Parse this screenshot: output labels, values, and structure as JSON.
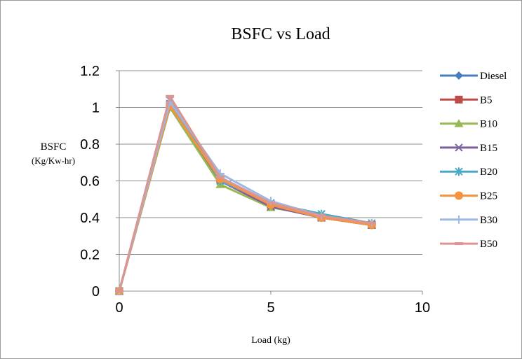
{
  "chart_data": {
    "type": "scatter",
    "title": "BSFC vs Load",
    "xlabel": "Load (kg)",
    "ylabel": [
      "BSFC",
      "(Kg/Kw-hr)"
    ],
    "xlim": [
      0,
      10
    ],
    "ylim": [
      0,
      1.2
    ],
    "xticks": [
      "0",
      "5",
      "10"
    ],
    "yticks": [
      "0",
      "0.2",
      "0.4",
      "0.6",
      "0.8",
      "1",
      "1.2"
    ],
    "grid": "horizontal",
    "legend": "right",
    "x": [
      0,
      1.67,
      3.33,
      5,
      6.67,
      8.33
    ],
    "series": [
      {
        "name": "Diesel",
        "color": "#4A7EBB",
        "marker": "diamond",
        "values": [
          0,
          1.0,
          0.6,
          0.47,
          0.4,
          0.36
        ]
      },
      {
        "name": "B5",
        "color": "#BE4B48",
        "marker": "square",
        "values": [
          0,
          1.01,
          0.61,
          0.47,
          0.4,
          0.36
        ]
      },
      {
        "name": "B10",
        "color": "#98B954",
        "marker": "triangle",
        "values": [
          0,
          1.0,
          0.58,
          0.455,
          0.41,
          0.36
        ]
      },
      {
        "name": "B15",
        "color": "#7D60A0",
        "marker": "x",
        "values": [
          0,
          1.02,
          0.6,
          0.46,
          0.4,
          0.36
        ]
      },
      {
        "name": "B20",
        "color": "#46AAC5",
        "marker": "star",
        "values": [
          0,
          1.04,
          0.6,
          0.48,
          0.42,
          0.37
        ]
      },
      {
        "name": "B25",
        "color": "#F69240",
        "marker": "circle",
        "values": [
          0,
          1.01,
          0.61,
          0.47,
          0.4,
          0.36
        ]
      },
      {
        "name": "B30",
        "color": "#9DB9E3",
        "marker": "plus",
        "values": [
          0,
          1.03,
          0.64,
          0.49,
          0.41,
          0.37
        ]
      },
      {
        "name": "B50",
        "color": "#DA9694",
        "marker": "dash",
        "values": [
          0,
          1.06,
          0.62,
          0.48,
          0.41,
          0.37
        ]
      }
    ]
  }
}
